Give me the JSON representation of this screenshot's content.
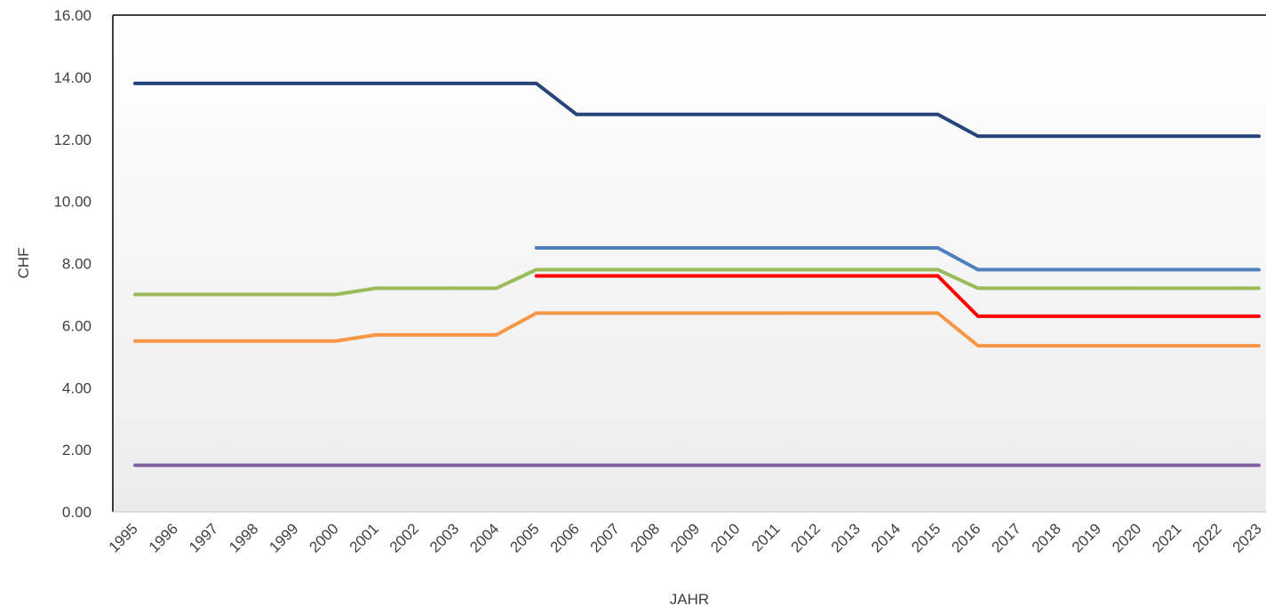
{
  "chart_data": {
    "type": "line",
    "title": "",
    "xlabel": "JAHR",
    "ylabel": "CHF",
    "ylim": [
      0,
      16
    ],
    "y_tick_step": 2,
    "y_tick_decimals": 2,
    "grid": false,
    "legend": "none",
    "categories": [
      "1995",
      "1996",
      "1997",
      "1998",
      "1999",
      "2000",
      "2001",
      "2002",
      "2003",
      "2004",
      "2005",
      "2006",
      "2007",
      "2008",
      "2009",
      "2010",
      "2011",
      "2012",
      "2013",
      "2014",
      "2015",
      "2016",
      "2017",
      "2018",
      "2019",
      "2020",
      "2021",
      "2022",
      "2023"
    ],
    "series": [
      {
        "color": "#264478",
        "values": [
          13.8,
          13.8,
          13.8,
          13.8,
          13.8,
          13.8,
          13.8,
          13.8,
          13.8,
          13.8,
          13.8,
          12.8,
          12.8,
          12.8,
          12.8,
          12.8,
          12.8,
          12.8,
          12.8,
          12.8,
          12.8,
          12.1,
          12.1,
          12.1,
          12.1,
          12.1,
          12.1,
          12.1,
          12.1
        ]
      },
      {
        "color": "#4f81bd",
        "values": [
          null,
          null,
          null,
          null,
          null,
          null,
          null,
          null,
          null,
          null,
          8.5,
          8.5,
          8.5,
          8.5,
          8.5,
          8.5,
          8.5,
          8.5,
          8.5,
          8.5,
          8.5,
          7.8,
          7.8,
          7.8,
          7.8,
          7.8,
          7.8,
          7.8,
          7.8
        ]
      },
      {
        "color": "#9bbb59",
        "values": [
          7.0,
          7.0,
          7.0,
          7.0,
          7.0,
          7.0,
          7.2,
          7.2,
          7.2,
          7.2,
          7.8,
          7.8,
          7.8,
          7.8,
          7.8,
          7.8,
          7.8,
          7.8,
          7.8,
          7.8,
          7.8,
          7.2,
          7.2,
          7.2,
          7.2,
          7.2,
          7.2,
          7.2,
          7.2
        ]
      },
      {
        "color": "#ff0000",
        "values": [
          null,
          null,
          null,
          null,
          null,
          null,
          null,
          null,
          null,
          null,
          7.6,
          7.6,
          7.6,
          7.6,
          7.6,
          7.6,
          7.6,
          7.6,
          7.6,
          7.6,
          7.6,
          6.3,
          6.3,
          6.3,
          6.3,
          6.3,
          6.3,
          6.3,
          6.3
        ]
      },
      {
        "color": "#f79646",
        "values": [
          5.5,
          5.5,
          5.5,
          5.5,
          5.5,
          5.5,
          5.7,
          5.7,
          5.7,
          5.7,
          6.4,
          6.4,
          6.4,
          6.4,
          6.4,
          6.4,
          6.4,
          6.4,
          6.4,
          6.4,
          6.4,
          5.35,
          5.35,
          5.35,
          5.35,
          5.35,
          5.35,
          5.35,
          5.35
        ]
      },
      {
        "color": "#8064a2",
        "values": [
          1.5,
          1.5,
          1.5,
          1.5,
          1.5,
          1.5,
          1.5,
          1.5,
          1.5,
          1.5,
          1.5,
          1.5,
          1.5,
          1.5,
          1.5,
          1.5,
          1.5,
          1.5,
          1.5,
          1.5,
          1.5,
          1.5,
          1.5,
          1.5,
          1.5,
          1.5,
          1.5,
          1.5,
          1.5
        ]
      }
    ]
  }
}
